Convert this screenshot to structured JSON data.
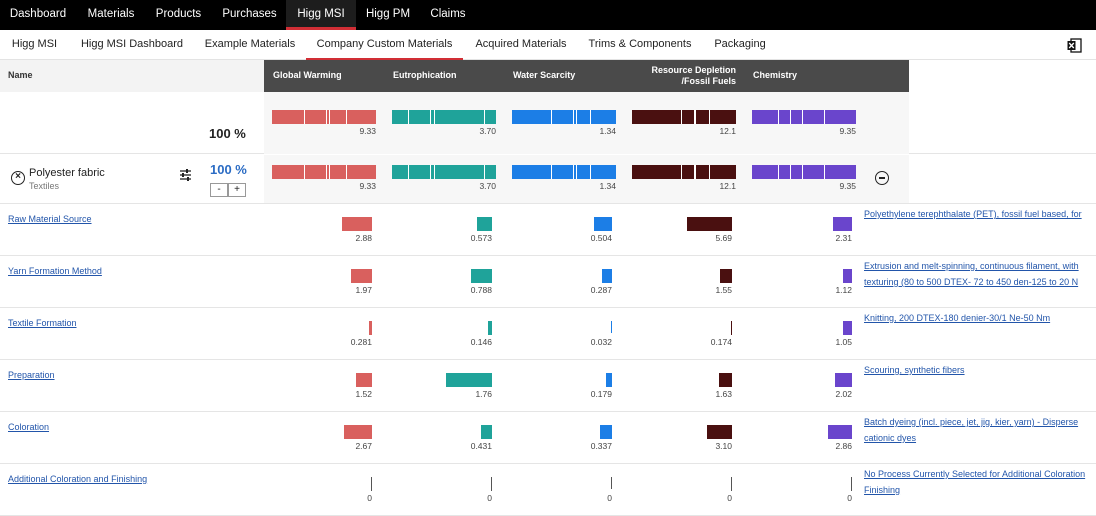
{
  "topnav": [
    {
      "label": "Dashboard",
      "active": false
    },
    {
      "label": "Materials",
      "active": false
    },
    {
      "label": "Products",
      "active": false
    },
    {
      "label": "Purchases",
      "active": false
    },
    {
      "label": "Higg MSI",
      "active": true
    },
    {
      "label": "Higg PM",
      "active": false
    },
    {
      "label": "Claims",
      "active": false
    }
  ],
  "subnav": [
    {
      "label": "Higg MSI",
      "active": false
    },
    {
      "label": "Higg MSI Dashboard",
      "active": false
    },
    {
      "label": "Example Materials",
      "active": false
    },
    {
      "label": "Company Custom Materials",
      "active": true
    },
    {
      "label": "Acquired Materials",
      "active": false
    },
    {
      "label": "Trims & Components",
      "active": false
    },
    {
      "label": "Packaging",
      "active": false
    }
  ],
  "table": {
    "name_header": "Name",
    "impact_headers": [
      "Global Warming",
      "Eutrophication",
      "Water Scarcity",
      "Resource Depletion /Fossil Fuels",
      "Chemistry"
    ],
    "impact_header_lines": [
      [
        "Global Warming"
      ],
      [
        "Eutrophication"
      ],
      [
        "Water Scarcity"
      ],
      [
        "Resource Depletion",
        "/Fossil Fuels"
      ],
      [
        "Chemistry"
      ]
    ],
    "colors": [
      "#d9605e",
      "#1fa39a",
      "#1c7ee6",
      "#4a1010",
      "#6a45cc"
    ]
  },
  "total": {
    "percent": "100 %",
    "values": [
      "9.33",
      "3.70",
      "1.34",
      "12.1",
      "9.35"
    ]
  },
  "material": {
    "name": "Polyester fabric",
    "category": "Textiles",
    "percent": "100 %",
    "minus_label": "-",
    "plus_label": "+",
    "values": [
      "9.33",
      "3.70",
      "1.34",
      "12.1",
      "9.35"
    ]
  },
  "processes": [
    {
      "name": "Raw Material Source",
      "values": [
        "2.88",
        "0.573",
        "0.504",
        "5.69",
        "2.31"
      ],
      "desc_lines": [
        "Polyethylene terephthalate (PET), fossil fuel based, for"
      ]
    },
    {
      "name": "Yarn Formation Method",
      "values": [
        "1.97",
        "0.788",
        "0.287",
        "1.55",
        "1.12"
      ],
      "desc_lines": [
        "Extrusion and melt-spinning, continuous filament, with",
        "texturing (80 to 500 DTEX- 72 to 450 den-125 to 20 N"
      ]
    },
    {
      "name": "Textile Formation",
      "values": [
        "0.281",
        "0.146",
        "0.032",
        "0.174",
        "1.05"
      ],
      "desc_lines": [
        "Knitting, 200 DTEX-180 denier-30/1 Ne-50 Nm"
      ]
    },
    {
      "name": "Preparation",
      "values": [
        "1.52",
        "1.76",
        "0.179",
        "1.63",
        "2.02"
      ],
      "desc_lines": [
        "Scouring, synthetic fibers"
      ]
    },
    {
      "name": "Coloration",
      "values": [
        "2.67",
        "0.431",
        "0.337",
        "3.10",
        "2.86"
      ],
      "desc_lines": [
        "Batch dyeing (incl. piece, jet, jig, kier, yarn) - Disperse",
        "cationic dyes"
      ]
    },
    {
      "name": "Additional Coloration and Finishing",
      "values": [
        "0",
        "0",
        "0",
        "0",
        "0"
      ],
      "desc_lines": [
        "No Process Currently Selected for Additional Coloration",
        "Finishing"
      ]
    }
  ]
}
